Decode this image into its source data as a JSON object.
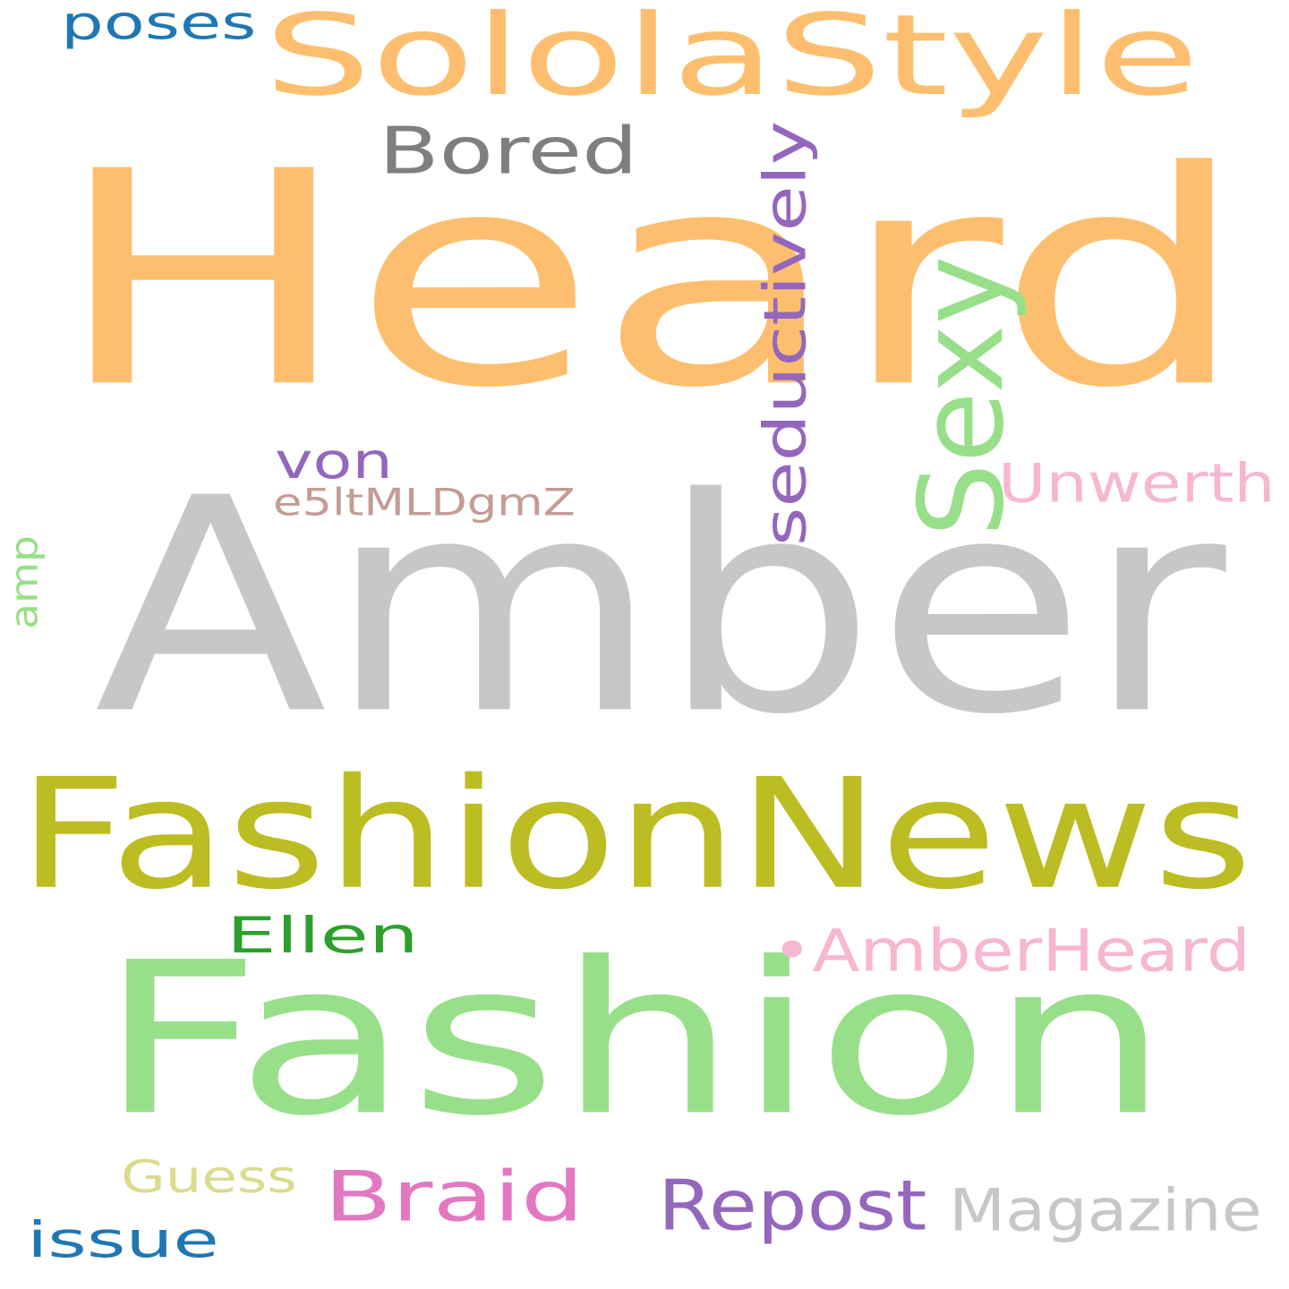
{
  "words": [
    {
      "id": "heard",
      "text": "Heard",
      "color": "#fdbf6f",
      "rotate": false
    },
    {
      "id": "amber",
      "text": "Amber",
      "color": "#c7c7c7",
      "rotate": false
    },
    {
      "id": "fashion",
      "text": "Fashion",
      "color": "#98df8a",
      "rotate": false
    },
    {
      "id": "fashionnews",
      "text": "FashionNews",
      "color": "#bcbd22",
      "rotate": false
    },
    {
      "id": "sololastyle",
      "text": "SololaStyle",
      "color": "#fdbf6f",
      "rotate": false
    },
    {
      "id": "sexy",
      "text": "Sexy",
      "color": "#98df8a",
      "rotate": true
    },
    {
      "id": "amberheard",
      "text": "•AmberHeard",
      "color": "#f7b6d2",
      "rotate": false
    },
    {
      "id": "magazine",
      "text": "Magazine",
      "color": "#c7c7c7",
      "rotate": false
    },
    {
      "id": "braid",
      "text": "Braid",
      "color": "#e377c2",
      "rotate": false
    },
    {
      "id": "repost",
      "text": "Repost",
      "color": "#9467bd",
      "rotate": false
    },
    {
      "id": "bored",
      "text": "Bored",
      "color": "#7f7f7f",
      "rotate": false
    },
    {
      "id": "seductively",
      "text": "seductively",
      "color": "#9467bd",
      "rotate": true
    },
    {
      "id": "unwerth",
      "text": "Unwerth",
      "color": "#f7b6d2",
      "rotate": false
    },
    {
      "id": "ellen",
      "text": "Ellen",
      "color": "#2ca02c",
      "rotate": false
    },
    {
      "id": "von",
      "text": "von",
      "color": "#9467bd",
      "rotate": false
    },
    {
      "id": "e5lt",
      "text": "e5ltMLDgmZ",
      "color": "#c49c94",
      "rotate": false
    },
    {
      "id": "guess",
      "text": "Guess",
      "color": "#dbdb8d",
      "rotate": false
    },
    {
      "id": "issue",
      "text": "issue",
      "color": "#1f77b4",
      "rotate": false
    },
    {
      "id": "poses",
      "text": "poses",
      "color": "#1f77b4",
      "rotate": false
    },
    {
      "id": "amp",
      "text": "amp",
      "color": "#98df8a",
      "rotate": true
    }
  ]
}
